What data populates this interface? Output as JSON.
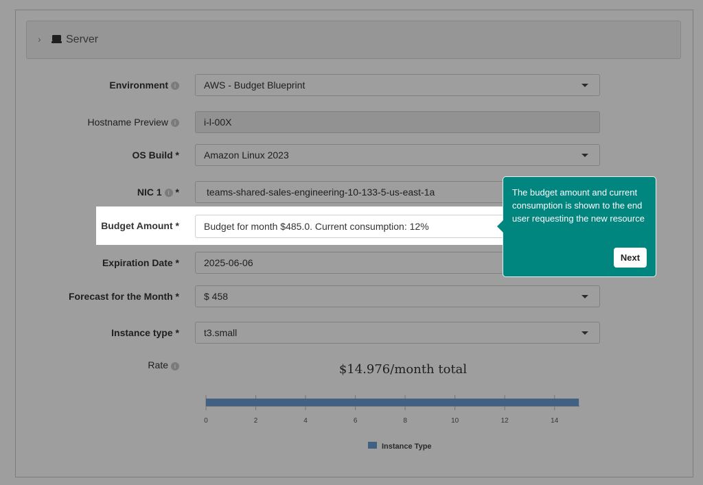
{
  "panel": {
    "title": "Server",
    "icon": "server-icon"
  },
  "form": {
    "environment": {
      "label": "Environment",
      "value": "AWS - Budget Blueprint"
    },
    "hostname": {
      "label": "Hostname Preview",
      "value": "i-l-00X"
    },
    "os_build": {
      "label": "OS Build *",
      "value": "Amazon Linux 2023"
    },
    "nic": {
      "label": "NIC 1",
      "required": "*",
      "value": "teams-shared-sales-engineering-10-133-5-us-east-1a"
    },
    "budget": {
      "label": "Budget Amount *",
      "value": "Budget for month $485.0. Current consumption: 12%"
    },
    "expiration": {
      "label": "Expiration Date *",
      "value": "2025-06-06"
    },
    "forecast": {
      "label": "Forecast for the Month *",
      "value": "$ 458"
    },
    "instance_type": {
      "label": "Instance type *",
      "value": "t3.small"
    },
    "rate": {
      "label": "Rate",
      "total": "$14.976/month total"
    }
  },
  "tooltip": {
    "text": "The budget amount and current consumption is shown to the end user requesting the new resource",
    "button": "Next"
  },
  "chart_data": {
    "type": "bar",
    "orientation": "horizontal",
    "categories": [
      ""
    ],
    "series": [
      {
        "name": "Instance Type",
        "values": [
          14.976
        ]
      }
    ],
    "xlim": [
      0,
      15
    ],
    "xticks": [
      "0",
      "2",
      "4",
      "6",
      "8",
      "10",
      "12",
      "14"
    ],
    "legend": "bottom",
    "color": "#6b9bd2"
  }
}
